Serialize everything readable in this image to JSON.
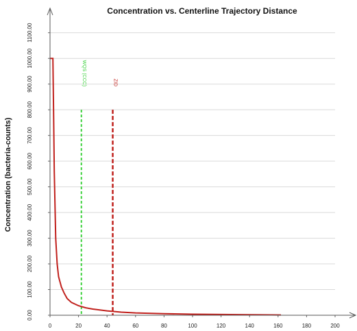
{
  "chart_data": {
    "type": "line",
    "title": "Concentration vs. Centerline Trajectory Distance",
    "xlabel": "",
    "ylabel": "Concentration (bacteria-counts)",
    "xlim": [
      0,
      200
    ],
    "ylim": [
      0,
      1150
    ],
    "x_ticks": [
      "0",
      "20",
      "40",
      "60",
      "80",
      "100",
      "120",
      "140",
      "160",
      "180",
      "200"
    ],
    "y_ticks": [
      "0.00",
      "100.00",
      "200.00",
      "300.00",
      "400.00",
      "500.00",
      "600.00",
      "700.00",
      "800.00",
      "900.00",
      "1000.00",
      "1100.00"
    ],
    "grid": "horizontal",
    "series": [
      {
        "color": "#c0201c",
        "x": [
          0,
          2,
          2.5,
          3,
          4,
          5,
          6,
          8,
          10,
          12,
          15,
          20,
          25,
          30,
          40,
          50,
          60,
          80,
          100,
          120,
          140,
          162
        ],
        "y": [
          1000,
          1000,
          790,
          560,
          300,
          200,
          150,
          110,
          85,
          65,
          50,
          37,
          29,
          24,
          17,
          12,
          9,
          6,
          4,
          3,
          2,
          1
        ]
      }
    ],
    "vlines": [
      {
        "x": 22,
        "y_top": 800,
        "label": "WQS (CCC)",
        "color": "#3bd13b"
      },
      {
        "x": 44,
        "y_top": 800,
        "label": "ZID",
        "color": "#c0201c"
      }
    ]
  }
}
